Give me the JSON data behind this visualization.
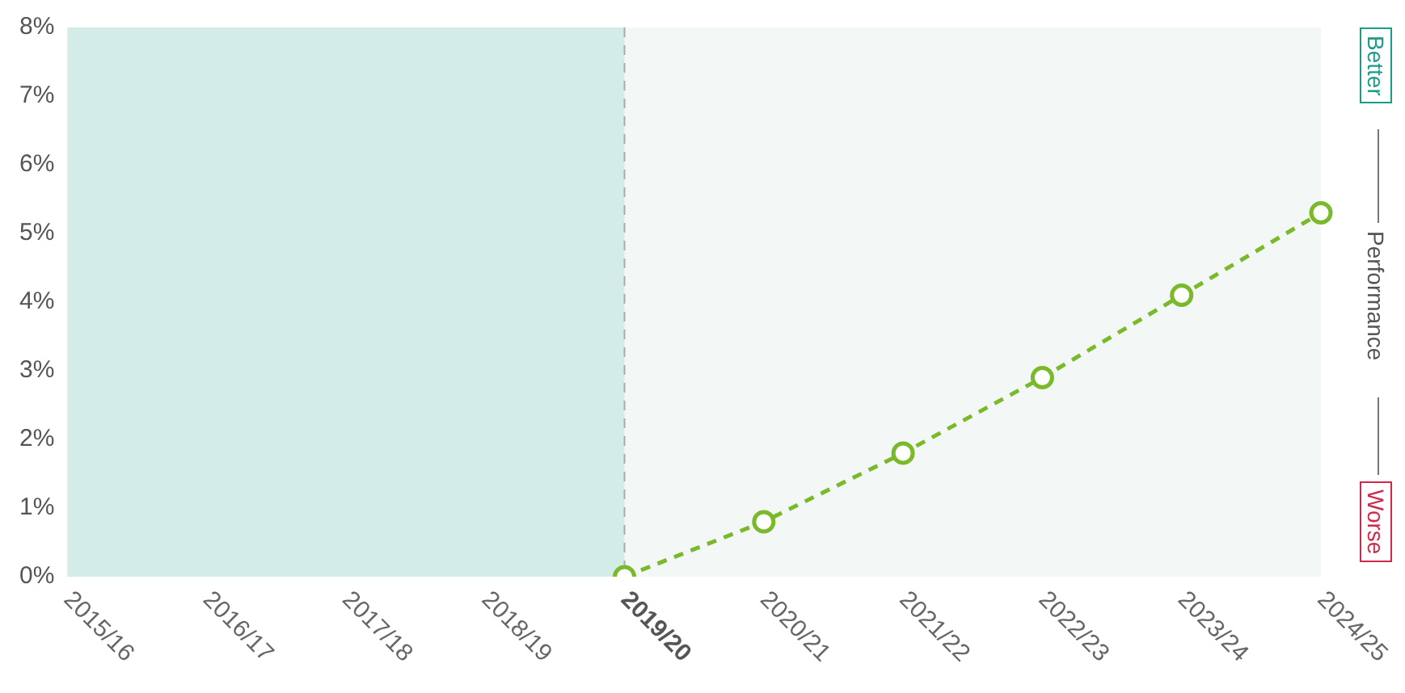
{
  "chart_data": {
    "type": "line",
    "categories": [
      "2015/16",
      "2016/17",
      "2017/18",
      "2018/19",
      "2019/20",
      "2020/21",
      "2021/22",
      "2022/23",
      "2023/24",
      "2024/25"
    ],
    "series": [
      {
        "color": "#7ab929",
        "values": [
          null,
          null,
          null,
          null,
          0,
          0.8,
          1.8,
          2.9,
          4.1,
          5.3
        ]
      }
    ],
    "ylim": [
      0,
      8
    ],
    "yticks": [
      {
        "value": 0,
        "label": "0%"
      },
      {
        "value": 1,
        "label": "1%"
      },
      {
        "value": 2,
        "label": "2%"
      },
      {
        "value": 3,
        "label": "3%"
      },
      {
        "value": 4,
        "label": "4%"
      },
      {
        "value": 5,
        "label": "5%"
      },
      {
        "value": 6,
        "label": "6%"
      },
      {
        "value": 7,
        "label": "7%"
      },
      {
        "value": 8,
        "label": "8%"
      }
    ],
    "bands": [
      {
        "axis": "x",
        "from": "2015/16",
        "to": "2019/20",
        "color": "#d4ece7"
      }
    ],
    "ref_lines": [
      {
        "axis": "x",
        "value": "2019/20",
        "color": "#aaaaaa",
        "line_style": "dashed"
      }
    ],
    "annotations": [
      "Better",
      "Performance",
      "Worse"
    ],
    "grid": false,
    "legend": false,
    "marker": "circle",
    "line_style": "dashed"
  }
}
